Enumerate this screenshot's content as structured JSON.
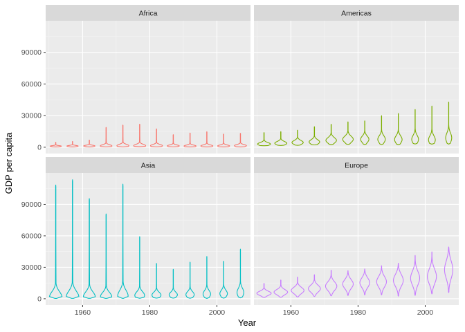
{
  "chart_data": {
    "type": "violin",
    "xlabel": "Year",
    "ylabel": "GDP per capita",
    "xlim": [
      1949,
      2010
    ],
    "ylim": [
      -6000,
      120000
    ],
    "x_ticks": [
      1960,
      1980,
      2000
    ],
    "y_ticks": [
      0,
      30000,
      60000,
      90000
    ],
    "x_tick_labels": [
      "1960",
      "1980",
      "2000"
    ],
    "y_tick_labels": [
      "0",
      "30000",
      "60000",
      "90000"
    ],
    "x": [
      1952,
      1957,
      1962,
      1967,
      1972,
      1977,
      1982,
      1987,
      1992,
      1997,
      2002,
      2007
    ],
    "grid": true,
    "legend": "none",
    "facets": [
      {
        "label": "Africa",
        "color": "#F8766D",
        "min": [
          300,
          300,
          300,
          400,
          400,
          500,
          400,
          400,
          300,
          300,
          250,
          300
        ],
        "max": [
          4700,
          5500,
          6800,
          18800,
          21000,
          21900,
          17400,
          11900,
          13500,
          14700,
          12500,
          13200
        ],
        "median": [
          1000,
          1100,
          1200,
          1200,
          1400,
          1400,
          1400,
          1250,
          1100,
          1200,
          1200,
          1450
        ],
        "width": [
          0.75,
          0.75,
          0.75,
          0.78,
          0.8,
          0.8,
          0.8,
          0.8,
          0.8,
          0.8,
          0.8,
          0.8
        ]
      },
      {
        "label": "Americas",
        "color": "#7CAE00",
        "min": [
          1400,
          1700,
          1800,
          2200,
          2500,
          2700,
          2600,
          2600,
          2500,
          3100,
          3000,
          3000
        ],
        "max": [
          13900,
          14800,
          16200,
          19500,
          21800,
          24100,
          25000,
          29900,
          32000,
          35800,
          39100,
          42900
        ],
        "median": [
          3000,
          3800,
          4500,
          5000,
          6500,
          7500,
          7500,
          7500,
          7300,
          7500,
          7000,
          8900
        ],
        "width": [
          0.85,
          0.8,
          0.75,
          0.7,
          0.7,
          0.7,
          0.55,
          0.5,
          0.5,
          0.45,
          0.45,
          0.4
        ]
      },
      {
        "label": "Asia",
        "color": "#00BFC4",
        "min": [
          330,
          350,
          360,
          350,
          400,
          500,
          600,
          600,
          500,
          400,
          600,
          900
        ],
        "max": [
          108400,
          113500,
          95500,
          80900,
          109300,
          59300,
          33700,
          28100,
          34900,
          40300,
          35800,
          47300
        ],
        "median": [
          1200,
          1500,
          1700,
          2000,
          2500,
          3200,
          3500,
          3800,
          3900,
          4500,
          4900,
          5900
        ],
        "width": [
          0.85,
          0.85,
          0.8,
          0.75,
          0.7,
          0.65,
          0.6,
          0.55,
          0.55,
          0.5,
          0.5,
          0.45
        ]
      },
      {
        "label": "Europe",
        "color": "#C77CFF",
        "min": [
          1300,
          1400,
          1700,
          2200,
          2800,
          3100,
          3600,
          3700,
          2500,
          3200,
          4600,
          5900
        ],
        "max": [
          14700,
          17900,
          20700,
          22900,
          27200,
          26800,
          28400,
          31500,
          33900,
          41300,
          44700,
          49400
        ],
        "median": [
          5200,
          6300,
          7900,
          9600,
          12000,
          14000,
          15300,
          16200,
          17500,
          19600,
          21200,
          28100
        ],
        "width": [
          0.95,
          0.9,
          0.85,
          0.8,
          0.75,
          0.7,
          0.65,
          0.65,
          0.65,
          0.6,
          0.6,
          0.55
        ]
      }
    ]
  }
}
